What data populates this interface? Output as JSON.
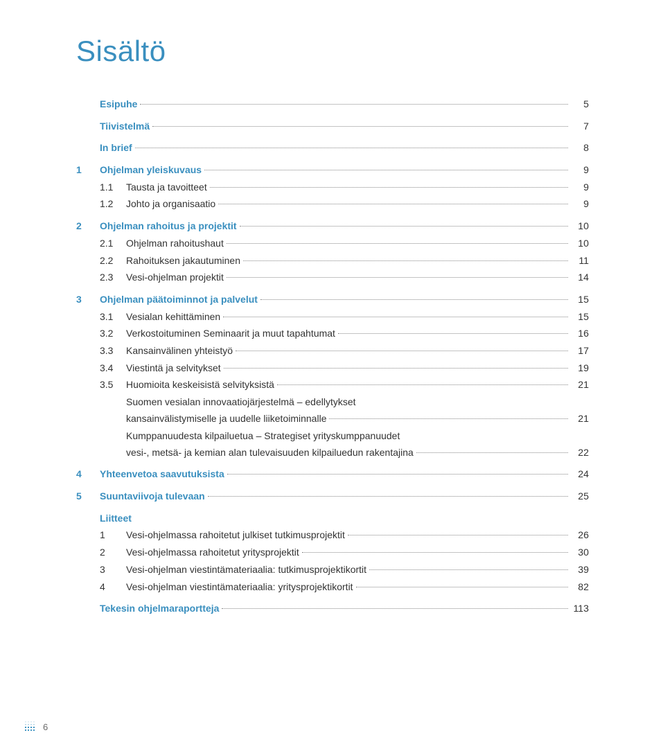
{
  "colors": {
    "accent": "#3a8fbf",
    "text": "#333333",
    "leader": "#888888",
    "footer": "#6a6a6a",
    "background": "#ffffff"
  },
  "typography": {
    "title_fontsize_pt": 32,
    "body_fontsize_pt": 10.5,
    "font_family": "Segoe UI"
  },
  "title": "Sisältö",
  "entries": [
    {
      "type": "top",
      "num": "",
      "label": "Esipuhe",
      "page": "5"
    },
    {
      "type": "gap-sm"
    },
    {
      "type": "top",
      "num": "",
      "label": "Tiivistelmä",
      "page": "7"
    },
    {
      "type": "gap-sm"
    },
    {
      "type": "top",
      "num": "",
      "label": "In brief",
      "page": "8"
    },
    {
      "type": "gap-sm"
    },
    {
      "type": "top",
      "num": "1",
      "label": "Ohjelman yleiskuvaus",
      "page": "9"
    },
    {
      "type": "sub",
      "sub": "1.1",
      "label": "Tausta ja tavoitteet",
      "page": "9"
    },
    {
      "type": "sub",
      "sub": "1.2",
      "label": "Johto ja organisaatio",
      "page": "9"
    },
    {
      "type": "gap-sm"
    },
    {
      "type": "top",
      "num": "2",
      "label": "Ohjelman rahoitus ja projektit",
      "page": "10"
    },
    {
      "type": "sub",
      "sub": "2.1",
      "label": "Ohjelman rahoitushaut",
      "page": "10"
    },
    {
      "type": "sub",
      "sub": "2.2",
      "label": "Rahoituksen jakautuminen",
      "page": "11"
    },
    {
      "type": "sub",
      "sub": "2.3",
      "label": "Vesi-ohjelman projektit",
      "page": "14"
    },
    {
      "type": "gap-sm"
    },
    {
      "type": "top",
      "num": "3",
      "label": "Ohjelman päätoiminnot ja palvelut",
      "page": "15"
    },
    {
      "type": "sub",
      "sub": "3.1",
      "label": "Vesialan kehittäminen",
      "page": "15"
    },
    {
      "type": "sub",
      "sub": "3.2",
      "label": "Verkostoituminen Seminaarit ja muut tapahtumat",
      "page": "16"
    },
    {
      "type": "sub",
      "sub": "3.3",
      "label": "Kansainvälinen yhteistyö",
      "page": "17"
    },
    {
      "type": "sub",
      "sub": "3.4",
      "label": "Viestintä ja selvitykset",
      "page": "19"
    },
    {
      "type": "sub",
      "sub": "3.5",
      "label": "Huomioita keskeisistä selvityksistä",
      "page": "21"
    },
    {
      "type": "para2",
      "lines": [
        "Suomen vesialan innovaatiojärjestelmä – edellytykset"
      ],
      "last": "kansainvälistymiselle ja uudelle liiketoiminnalle",
      "page": "21"
    },
    {
      "type": "para2",
      "lines": [
        "Kumppanuudesta kilpailuetua – Strategiset yrityskumppanuudet"
      ],
      "last": "vesi-, metsä- ja kemian alan tulevaisuuden kilpailuedun rakentajina",
      "page": "22"
    },
    {
      "type": "gap-sm"
    },
    {
      "type": "top",
      "num": "4",
      "label": "Yhteenvetoa saavutuksista",
      "page": "24"
    },
    {
      "type": "gap-sm"
    },
    {
      "type": "top",
      "num": "5",
      "label": "Suuntaviivoja tulevaan",
      "page": "25"
    },
    {
      "type": "gap-sm"
    },
    {
      "type": "head",
      "label": "Liitteet"
    },
    {
      "type": "att",
      "sub": "1",
      "label": "Vesi-ohjelmassa rahoitetut julkiset tutkimusprojektit",
      "page": "26"
    },
    {
      "type": "att",
      "sub": "2",
      "label": "Vesi-ohjelmassa rahoitetut yritysprojektit",
      "page": "30"
    },
    {
      "type": "att",
      "sub": "3",
      "label": "Vesi-ohjelman viestintämateriaalia: tutkimusprojektikortit",
      "page": "39"
    },
    {
      "type": "att",
      "sub": "4",
      "label": "Vesi-ohjelman viestintämateriaalia: yritysprojektikortit",
      "page": "82"
    },
    {
      "type": "gap-sm"
    },
    {
      "type": "top",
      "num": "",
      "label": "Tekesin ohjelmaraportteja",
      "page": "113"
    }
  ],
  "footer": {
    "page_number": "6"
  }
}
